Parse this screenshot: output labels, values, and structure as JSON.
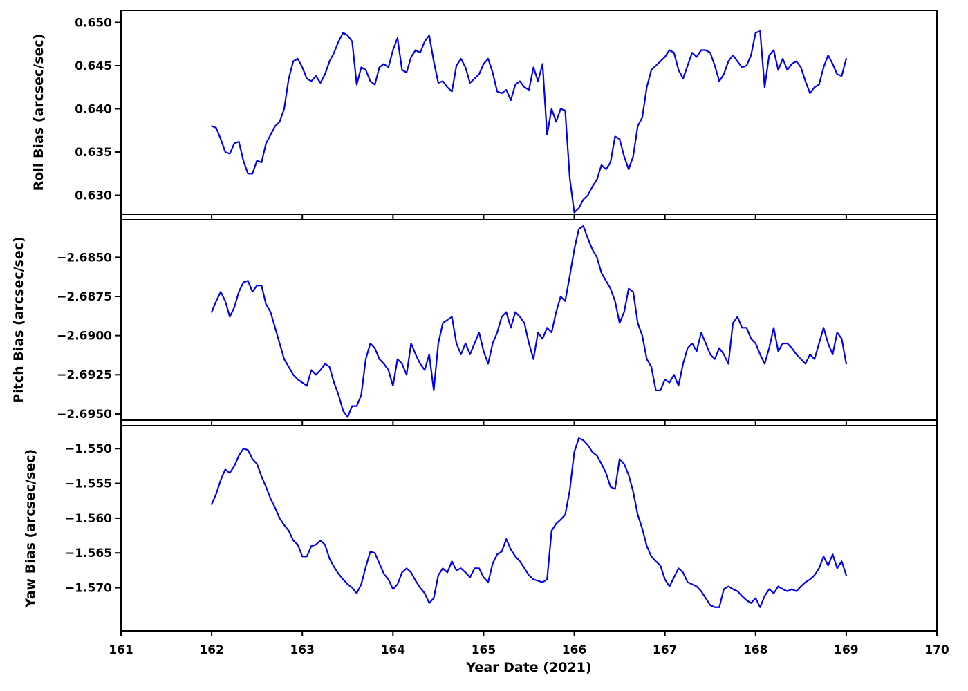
{
  "figure": {
    "background": "#ffffff",
    "line_color": "#0000ee",
    "axis_color": "#000000",
    "xlabel": "Year Date (2021)",
    "xlim": [
      161,
      170
    ],
    "x_ticks": [
      161,
      162,
      163,
      164,
      165,
      166,
      167,
      168,
      169,
      170
    ],
    "x_tick_labels": [
      "161",
      "162",
      "163",
      "164",
      "165",
      "166",
      "167",
      "168",
      "169",
      "170"
    ],
    "grid": false,
    "legend": "none"
  },
  "chart_data": {
    "type": "line",
    "title": "",
    "xlabel": "Year Date (2021)",
    "x": [
      162.0,
      162.05,
      162.1,
      162.15,
      162.2,
      162.25,
      162.3,
      162.35,
      162.4,
      162.45,
      162.5,
      162.55,
      162.6,
      162.65,
      162.7,
      162.75,
      162.8,
      162.85,
      162.9,
      162.95,
      163.0,
      163.05,
      163.1,
      163.15,
      163.2,
      163.25,
      163.3,
      163.35,
      163.4,
      163.45,
      163.5,
      163.55,
      163.6,
      163.65,
      163.7,
      163.75,
      163.8,
      163.85,
      163.9,
      163.95,
      164.0,
      164.05,
      164.1,
      164.15,
      164.2,
      164.25,
      164.3,
      164.35,
      164.4,
      164.45,
      164.5,
      164.55,
      164.6,
      164.65,
      164.7,
      164.75,
      164.8,
      164.85,
      164.9,
      164.95,
      165.0,
      165.05,
      165.1,
      165.15,
      165.2,
      165.25,
      165.3,
      165.35,
      165.4,
      165.45,
      165.5,
      165.55,
      165.6,
      165.65,
      165.7,
      165.75,
      165.8,
      165.85,
      165.9,
      165.95,
      166.0,
      166.05,
      166.1,
      166.15,
      166.2,
      166.25,
      166.3,
      166.35,
      166.4,
      166.45,
      166.5,
      166.55,
      166.6,
      166.65,
      166.7,
      166.75,
      166.8,
      166.85,
      166.9,
      166.95,
      167.0,
      167.05,
      167.1,
      167.15,
      167.2,
      167.25,
      167.3,
      167.35,
      167.4,
      167.45,
      167.5,
      167.55,
      167.6,
      167.65,
      167.7,
      167.75,
      167.8,
      167.85,
      167.9,
      167.95,
      168.0,
      168.05,
      168.1,
      168.15,
      168.2,
      168.25,
      168.3,
      168.35,
      168.4,
      168.45,
      168.5,
      168.55,
      168.6,
      168.65,
      168.7,
      168.75,
      168.8,
      168.85,
      168.9,
      168.95,
      169.0
    ],
    "subplots": [
      {
        "id": "roll-bias",
        "ylabel": "Roll Bias (arcsec/sec)",
        "ylim": [
          0.6278,
          0.6514
        ],
        "y_ticks": [
          0.63,
          0.635,
          0.64,
          0.645,
          0.65
        ],
        "y_tick_labels": [
          "0.630",
          "0.635",
          "0.640",
          "0.645",
          "0.650"
        ],
        "y": [
          0.638,
          0.6378,
          0.6365,
          0.635,
          0.6348,
          0.636,
          0.6362,
          0.634,
          0.6325,
          0.6325,
          0.634,
          0.6338,
          0.636,
          0.637,
          0.638,
          0.6385,
          0.64,
          0.6435,
          0.6455,
          0.6458,
          0.6448,
          0.6435,
          0.6432,
          0.6438,
          0.643,
          0.644,
          0.6455,
          0.6465,
          0.6478,
          0.6488,
          0.6485,
          0.6478,
          0.6428,
          0.6448,
          0.6445,
          0.6432,
          0.6428,
          0.6448,
          0.6452,
          0.6448,
          0.6468,
          0.6482,
          0.6445,
          0.6442,
          0.646,
          0.6468,
          0.6465,
          0.6478,
          0.6485,
          0.6455,
          0.643,
          0.6432,
          0.6425,
          0.642,
          0.645,
          0.6458,
          0.6448,
          0.643,
          0.6435,
          0.644,
          0.6452,
          0.6458,
          0.6442,
          0.642,
          0.6418,
          0.6422,
          0.641,
          0.6428,
          0.6432,
          0.6425,
          0.6422,
          0.6448,
          0.6432,
          0.6452,
          0.637,
          0.64,
          0.6385,
          0.64,
          0.6398,
          0.632,
          0.628,
          0.6285,
          0.6295,
          0.63,
          0.631,
          0.6318,
          0.6335,
          0.633,
          0.6338,
          0.6368,
          0.6365,
          0.6345,
          0.633,
          0.6345,
          0.638,
          0.639,
          0.6425,
          0.6445,
          0.645,
          0.6455,
          0.646,
          0.6468,
          0.6465,
          0.6445,
          0.6435,
          0.645,
          0.6465,
          0.646,
          0.6468,
          0.6468,
          0.6465,
          0.645,
          0.6432,
          0.644,
          0.6455,
          0.6462,
          0.6455,
          0.6448,
          0.645,
          0.6462,
          0.6488,
          0.649,
          0.6425,
          0.6462,
          0.6468,
          0.6445,
          0.6458,
          0.6445,
          0.6452,
          0.6455,
          0.6448,
          0.6432,
          0.6418,
          0.6425,
          0.6428,
          0.6448,
          0.6462,
          0.6452,
          0.644,
          0.6438,
          0.6458
        ]
      },
      {
        "id": "pitch-bias",
        "ylabel": "Pitch Bias (arcsec/sec)",
        "ylim": [
          -2.6954,
          -2.6826
        ],
        "y_ticks": [
          -2.695,
          -2.6925,
          -2.69,
          -2.6875,
          -2.685
        ],
        "y_tick_labels": [
          "−2.6950",
          "−2.6925",
          "−2.6900",
          "−2.6875",
          "−2.6850"
        ],
        "y": [
          -2.6885,
          -2.6878,
          -2.6872,
          -2.6878,
          -2.6888,
          -2.6882,
          -2.6872,
          -2.6866,
          -2.6865,
          -2.6872,
          -2.6868,
          -2.6868,
          -2.688,
          -2.6885,
          -2.6895,
          -2.6905,
          -2.6915,
          -2.692,
          -2.6925,
          -2.6928,
          -2.693,
          -2.6932,
          -2.6922,
          -2.6925,
          -2.6922,
          -2.6918,
          -2.692,
          -2.693,
          -2.6938,
          -2.6948,
          -2.6952,
          -2.6945,
          -2.6945,
          -2.6938,
          -2.6915,
          -2.6905,
          -2.6908,
          -2.6915,
          -2.6918,
          -2.6922,
          -2.6932,
          -2.6915,
          -2.6918,
          -2.6925,
          -2.6905,
          -2.6912,
          -2.6918,
          -2.6922,
          -2.6912,
          -2.6935,
          -2.6905,
          -2.6892,
          -2.689,
          -2.6888,
          -2.6905,
          -2.6912,
          -2.6905,
          -2.6912,
          -2.6905,
          -2.6898,
          -2.691,
          -2.6918,
          -2.6905,
          -2.6898,
          -2.6888,
          -2.6885,
          -2.6895,
          -2.6885,
          -2.6888,
          -2.6892,
          -2.6905,
          -2.6915,
          -2.6898,
          -2.6902,
          -2.6895,
          -2.6898,
          -2.6885,
          -2.6875,
          -2.6878,
          -2.6862,
          -2.6845,
          -2.6832,
          -2.683,
          -2.6838,
          -2.6845,
          -2.685,
          -2.686,
          -2.6865,
          -2.687,
          -2.6878,
          -2.6892,
          -2.6885,
          -2.687,
          -2.6872,
          -2.6892,
          -2.69,
          -2.6915,
          -2.692,
          -2.6935,
          -2.6935,
          -2.6928,
          -2.693,
          -2.6925,
          -2.6932,
          -2.6918,
          -2.6908,
          -2.6905,
          -2.691,
          -2.6898,
          -2.6905,
          -2.6912,
          -2.6915,
          -2.6908,
          -2.6912,
          -2.6918,
          -2.6892,
          -2.6888,
          -2.6895,
          -2.6895,
          -2.6902,
          -2.6905,
          -2.6912,
          -2.6918,
          -2.6908,
          -2.6895,
          -2.691,
          -2.6905,
          -2.6905,
          -2.6908,
          -2.6912,
          -2.6915,
          -2.6918,
          -2.6912,
          -2.6915,
          -2.6905,
          -2.6895,
          -2.6905,
          -2.6912,
          -2.6898,
          -2.6902,
          -2.6918
        ]
      },
      {
        "id": "yaw-bias",
        "ylabel": "Yaw Bias (arcsec/sec)",
        "ylim": [
          -1.5762,
          -1.5467
        ],
        "y_ticks": [
          -1.57,
          -1.565,
          -1.56,
          -1.555,
          -1.55
        ],
        "y_tick_labels": [
          "−1.570",
          "−1.565",
          "−1.560",
          "−1.555",
          "−1.550"
        ],
        "y": [
          -1.558,
          -1.5565,
          -1.5545,
          -1.553,
          -1.5535,
          -1.5525,
          -1.551,
          -1.55,
          -1.5502,
          -1.5515,
          -1.5522,
          -1.554,
          -1.5555,
          -1.5572,
          -1.5585,
          -1.56,
          -1.561,
          -1.5618,
          -1.5632,
          -1.5638,
          -1.5655,
          -1.5655,
          -1.564,
          -1.5638,
          -1.5632,
          -1.5638,
          -1.5658,
          -1.567,
          -1.568,
          -1.5688,
          -1.5695,
          -1.57,
          -1.5708,
          -1.5695,
          -1.567,
          -1.5648,
          -1.565,
          -1.5665,
          -1.568,
          -1.5688,
          -1.5702,
          -1.5695,
          -1.5678,
          -1.5672,
          -1.5678,
          -1.569,
          -1.57,
          -1.5708,
          -1.5722,
          -1.5715,
          -1.5682,
          -1.5672,
          -1.5678,
          -1.5662,
          -1.5675,
          -1.5672,
          -1.5678,
          -1.5685,
          -1.5672,
          -1.5672,
          -1.5685,
          -1.5692,
          -1.5665,
          -1.5652,
          -1.5648,
          -1.563,
          -1.5645,
          -1.5655,
          -1.5662,
          -1.5672,
          -1.5682,
          -1.5688,
          -1.569,
          -1.5692,
          -1.5688,
          -1.5618,
          -1.5608,
          -1.5602,
          -1.5595,
          -1.556,
          -1.5505,
          -1.5485,
          -1.5488,
          -1.5495,
          -1.5505,
          -1.551,
          -1.5522,
          -1.5535,
          -1.5555,
          -1.5558,
          -1.5515,
          -1.5522,
          -1.5538,
          -1.5562,
          -1.5595,
          -1.5615,
          -1.564,
          -1.5655,
          -1.5662,
          -1.5668,
          -1.5688,
          -1.5698,
          -1.5685,
          -1.5672,
          -1.5678,
          -1.5692,
          -1.5695,
          -1.5698,
          -1.5705,
          -1.5715,
          -1.5725,
          -1.5728,
          -1.5728,
          -1.5702,
          -1.5698,
          -1.5702,
          -1.5705,
          -1.5712,
          -1.5718,
          -1.5722,
          -1.5715,
          -1.5728,
          -1.5712,
          -1.5702,
          -1.5708,
          -1.5698,
          -1.5702,
          -1.5705,
          -1.5702,
          -1.5705,
          -1.5698,
          -1.5692,
          -1.5688,
          -1.5682,
          -1.5672,
          -1.5655,
          -1.5668,
          -1.5652,
          -1.5672,
          -1.5662,
          -1.5682
        ]
      }
    ]
  }
}
